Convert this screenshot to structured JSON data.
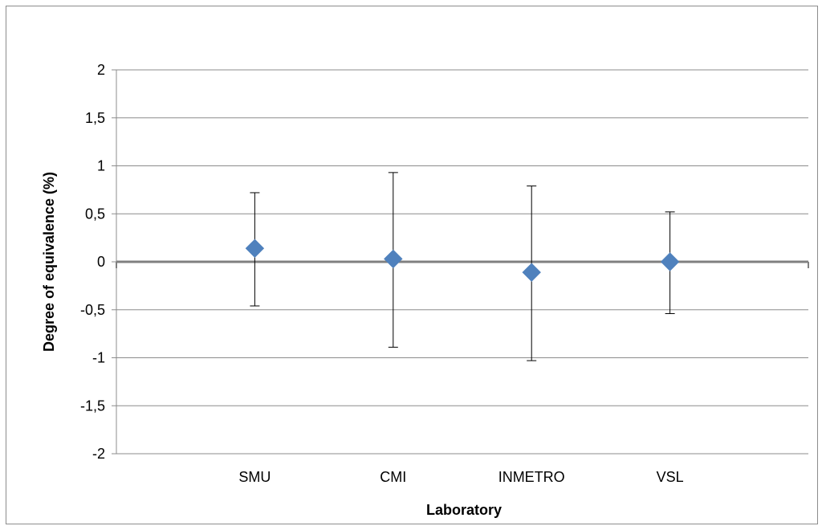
{
  "chart_data": {
    "type": "scatter",
    "title": "",
    "xlabel": "Laboratory",
    "ylabel": "Degree of equivalence (%)",
    "categories": [
      "SMU",
      "CMI",
      "INMETRO",
      "VSL"
    ],
    "series": [
      {
        "values": [
          0.14,
          0.03,
          -0.11,
          0.0
        ],
        "error_upper": [
          0.72,
          0.93,
          0.79,
          0.52
        ],
        "error_lower": [
          -0.46,
          -0.89,
          -1.03,
          -0.54
        ],
        "color": "#4f81bd",
        "marker": "diamond"
      }
    ],
    "ylim": [
      -2,
      2
    ],
    "yticks": [
      2,
      1.5,
      1,
      0.5,
      0,
      -0.5,
      -1,
      -1.5,
      -2
    ],
    "ytick_labels": [
      "2",
      "1,5",
      "1",
      "0,5",
      "0",
      "-0,5",
      "-1",
      "-1,5",
      "-2"
    ],
    "grid": true,
    "legend": "none",
    "colors": {
      "gridline": "#8c8c8c",
      "zero_line": "#808080",
      "error_bar": "#000000"
    }
  }
}
